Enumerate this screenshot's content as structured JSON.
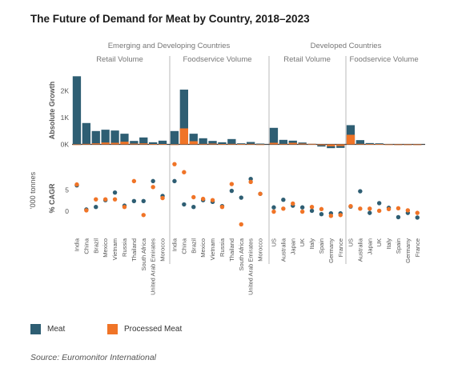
{
  "title": "The Future of Demand for Meat by Country, 2018–2023",
  "source": "Source: Euromonitor International",
  "colors": {
    "meat": "#2e5e73",
    "processed": "#f07427",
    "divider": "#b8b8b8",
    "text": "#555555"
  },
  "chart_data": {
    "type": "bar",
    "unit_label": "'000 tonnes",
    "top_panel": {
      "ylabel": "Absolute Growth",
      "ticks": [
        "0K",
        "1K",
        "2K"
      ],
      "ylim": [
        -200,
        2700
      ]
    },
    "bottom_panel": {
      "ylabel": "% CAGR",
      "ticks": [
        "0",
        "5"
      ],
      "ylim": [
        -4,
        10
      ]
    },
    "group_headers": [
      {
        "label": "Emerging and Developing Countries"
      },
      {
        "label": "Developed Countries"
      }
    ],
    "legend": [
      {
        "name": "Meat",
        "color": "#2e5e73"
      },
      {
        "name": "Processed Meat",
        "color": "#f07427"
      }
    ],
    "panels": [
      {
        "label": "Retail Volume",
        "categories": [
          "India",
          "China",
          "Brazil",
          "Mexico",
          "Vietnam",
          "Russia",
          "Thailand",
          "South Africa",
          "United Arab Emirates",
          "Morocco"
        ],
        "absolute_growth": {
          "meat": [
            2550,
            800,
            500,
            550,
            520,
            400,
            130,
            260,
            80,
            140
          ],
          "processed": [
            0,
            20,
            40,
            70,
            60,
            100,
            30,
            40,
            10,
            10
          ]
        },
        "cagr": {
          "meat": [
            6.1,
            0.4,
            1.0,
            2.6,
            4.4,
            1.3,
            2.4,
            2.4,
            7.1,
            3.6
          ],
          "processed": [
            6.3,
            0.2,
            2.8,
            2.8,
            2.8,
            1.0,
            7.1,
            -0.9,
            5.7,
            3.1
          ]
        }
      },
      {
        "label": "Foodservice Volume",
        "categories": [
          "India",
          "China",
          "Brazil",
          "Mexico",
          "Vietnam",
          "Russia",
          "Thailand",
          "South Africa",
          "United Arab Emirates",
          "Morocco"
        ],
        "absolute_growth": {
          "meat": [
            500,
            2050,
            400,
            230,
            130,
            80,
            200,
            40,
            90,
            30
          ],
          "processed": [
            0,
            600,
            120,
            20,
            30,
            10,
            20,
            10,
            20,
            0
          ]
        },
        "cagr": {
          "meat": [
            7.1,
            1.6,
            1.0,
            2.6,
            2.2,
            1.2,
            4.8,
            3.2,
            7.6,
            4.1
          ],
          "processed": [
            11.1,
            9.2,
            3.3,
            2.9,
            2.6,
            1.0,
            6.4,
            -3.1,
            6.9,
            4.1
          ]
        }
      },
      {
        "label": "Retail Volume",
        "categories": [
          "US",
          "Australia",
          "Japan",
          "UK",
          "Italy",
          "Spain",
          "Germany",
          "France"
        ],
        "absolute_growth": {
          "meat": [
            620,
            170,
            140,
            70,
            20,
            -80,
            -140,
            -130
          ],
          "processed": [
            60,
            20,
            60,
            30,
            20,
            -30,
            -70,
            -60
          ]
        },
        "cagr": {
          "meat": [
            0.9,
            2.7,
            1.3,
            0.9,
            0.1,
            -0.7,
            -0.5,
            -0.5
          ],
          "processed": [
            -0.1,
            0.6,
            1.8,
            -0.1,
            1.0,
            0.5,
            -1.1,
            -0.9
          ]
        }
      },
      {
        "label": "Foodservice Volume",
        "categories": [
          "US",
          "Australia",
          "Japan",
          "UK",
          "Italy",
          "Spain",
          "Germany",
          "France"
        ],
        "absolute_growth": {
          "meat": [
            720,
            160,
            50,
            40,
            10,
            0,
            -10,
            -20
          ],
          "processed": [
            360,
            20,
            10,
            10,
            0,
            0,
            0,
            -10
          ]
        },
        "cagr": {
          "meat": [
            1.1,
            4.7,
            -0.4,
            1.9,
            0.8,
            -1.4,
            -0.4,
            -1.5
          ],
          "processed": [
            1.2,
            0.6,
            0.6,
            0.1,
            0.5,
            0.7,
            0.2,
            -0.4
          ]
        }
      }
    ]
  }
}
